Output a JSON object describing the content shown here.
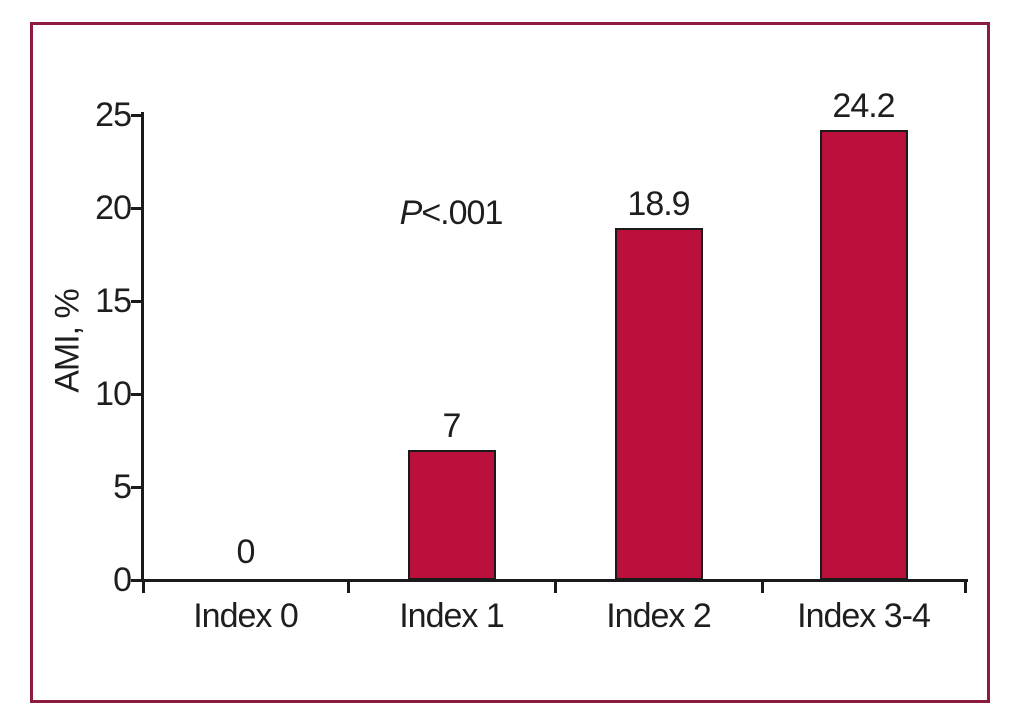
{
  "figure": {
    "frame_color": "#8b1c3e",
    "background": "#ffffff",
    "text_color": "#1e1e1e"
  },
  "chart_data": {
    "type": "bar",
    "title": "",
    "categories": [
      "Index 0",
      "Index 1",
      "Index 2",
      "Index 3-4"
    ],
    "values": [
      0,
      7,
      18.9,
      24.2
    ],
    "value_labels": [
      "0",
      "7",
      "18.9",
      "24.2"
    ],
    "xlabel": "",
    "ylabel": "AMI, %",
    "ylim": [
      0,
      25
    ],
    "yticks": [
      0,
      5,
      10,
      15,
      20,
      25
    ],
    "grid": false,
    "legend_position": "none",
    "bar_color": "#bc103c",
    "bar_edge_color": "#1a1a1a",
    "annotation": {
      "italic": "P",
      "text": "<.001"
    }
  }
}
